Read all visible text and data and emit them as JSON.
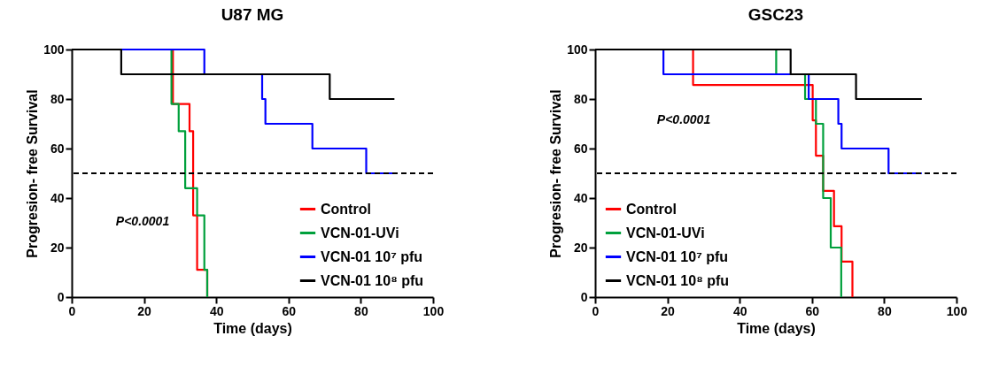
{
  "chart_data": [
    {
      "type": "step",
      "title": "U87 MG",
      "xlabel": "Time (days)",
      "ylabel": "Progresion- free Survival",
      "xlim": [
        0,
        100
      ],
      "xticks": [
        0,
        20,
        40,
        60,
        80,
        100
      ],
      "ylim": [
        0,
        100
      ],
      "yticks": [
        0,
        20,
        40,
        60,
        80,
        100
      ],
      "grid": false,
      "legend": "bottom right",
      "marker": "none",
      "line_style": "solid",
      "annotations": [
        "P<0.0001"
      ],
      "ref_lines": [
        {
          "axis": "y",
          "value": 50,
          "label": null,
          "color": "#000000",
          "line_style": "dashed"
        }
      ],
      "series": [
        {
          "name": "Control",
          "color": "#ff0000",
          "x": [
            0,
            28,
            32.6,
            33.6,
            34.7,
            37.5
          ],
          "values": [
            100,
            78,
            67,
            33,
            11,
            0
          ]
        },
        {
          "name": "VCN-01-UVi",
          "color": "#00a03c",
          "x": [
            0,
            27.6,
            29.6,
            31.4,
            34.7,
            36.7,
            37.5
          ],
          "values": [
            100,
            78,
            67,
            44,
            33,
            11,
            0
          ]
        },
        {
          "name": "VCN-01 10⁷ pfu",
          "color": "#0000ff",
          "x": [
            0,
            36.7,
            52.7,
            53.6,
            66.6,
            81.5,
            89.3
          ],
          "values": [
            100,
            90,
            80,
            70,
            60,
            50,
            50
          ]
        },
        {
          "name": "VCN-01 10⁸ pfu",
          "color": "#000000",
          "x": [
            0,
            13.7,
            71.4,
            89.3
          ],
          "values": [
            100,
            90,
            80,
            80
          ]
        }
      ]
    },
    {
      "type": "step",
      "title": "GSC23",
      "xlabel": "Time (days)",
      "ylabel": "Progresion- free Survival",
      "xlim": [
        0,
        100
      ],
      "xticks": [
        0,
        20,
        40,
        60,
        80,
        100
      ],
      "ylim": [
        0,
        100
      ],
      "yticks": [
        0,
        20,
        40,
        60,
        80,
        100
      ],
      "grid": false,
      "legend": "bottom left",
      "marker": "none",
      "line_style": "solid",
      "annotations": [
        "P<0.0001"
      ],
      "ref_lines": [
        {
          "axis": "y",
          "value": 50,
          "label": null,
          "color": "#000000",
          "line_style": "dashed"
        }
      ],
      "series": [
        {
          "name": "Control",
          "color": "#ff0000",
          "x": [
            0,
            27.1,
            60.2,
            61.1,
            63.1,
            66.1,
            68.2,
            71.2
          ],
          "values": [
            100,
            85.7,
            71.4,
            57.1,
            42.9,
            28.6,
            14.3,
            0
          ]
        },
        {
          "name": "VCN-01-UVi",
          "color": "#00a03c",
          "x": [
            0,
            50.1,
            58.1,
            61.1,
            63.1,
            65.2,
            68.1
          ],
          "values": [
            100,
            90,
            80,
            70,
            40,
            20,
            0
          ]
        },
        {
          "name": "VCN-01 10⁷ pfu",
          "color": "#0000ff",
          "x": [
            0,
            18.9,
            59.1,
            67.3,
            68.2,
            81.2,
            90.4
          ],
          "values": [
            100,
            90,
            80,
            70,
            60,
            50,
            50
          ]
        },
        {
          "name": "VCN-01 10⁸ pfu",
          "color": "#000000",
          "x": [
            0,
            54.1,
            72.2,
            90.4
          ],
          "values": [
            100,
            90,
            80,
            80
          ]
        }
      ]
    }
  ]
}
